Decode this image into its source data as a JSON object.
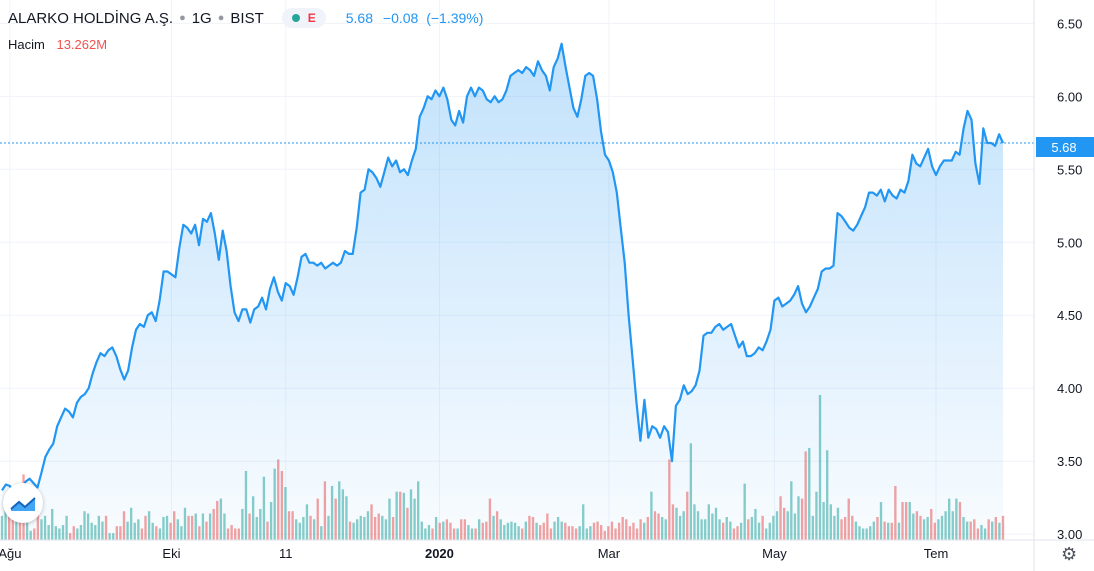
{
  "header": {
    "symbol": "ALARKO HOLDİNG A.Ş.",
    "interval": "1G",
    "exchange": "BIST",
    "flag": "E",
    "last": "5.68",
    "change": "−0.08",
    "change_pct": "(−1.39%)"
  },
  "volume": {
    "label": "Hacim",
    "value": "13.262M"
  },
  "price_label": "5.68",
  "icons": {
    "logo": "tradingview-logo-icon",
    "settings": "gear-icon",
    "status": "market-status-dot-icon"
  },
  "colors": {
    "line": "#2196f3",
    "vol_up": "#26a69a",
    "vol_down": "#ef5350"
  },
  "chart_data": {
    "type": "area",
    "title": "ALARKO HOLDİNG A.Ş. · 1G · BIST",
    "x_ticks": [
      "Ağu",
      "Eki",
      "11",
      "2020",
      "Mar",
      "May",
      "Tem"
    ],
    "y_ticks": [
      3.0,
      3.5,
      4.0,
      4.5,
      5.0,
      5.5,
      6.0,
      6.5
    ],
    "ylim": [
      2.96,
      6.66
    ],
    "last_price": 5.68,
    "grid": true,
    "series": [
      {
        "x_start": "2019-08-01",
        "x_end": "2020-07-24",
        "values": [
          3.3,
          3.34,
          3.33,
          3.28,
          3.31,
          3.3,
          3.36,
          3.38,
          3.35,
          3.32,
          3.42,
          3.53,
          3.58,
          3.62,
          3.74,
          3.8,
          3.86,
          3.84,
          3.8,
          3.9,
          3.94,
          3.96,
          4.0,
          4.1,
          4.18,
          4.24,
          4.22,
          4.26,
          4.28,
          4.22,
          4.13,
          4.06,
          4.12,
          4.28,
          4.4,
          4.44,
          4.42,
          4.5,
          4.52,
          4.46,
          4.6,
          4.8,
          4.8,
          4.78,
          4.76,
          4.96,
          5.12,
          5.1,
          5.06,
          5.12,
          4.98,
          5.16,
          5.14,
          5.2,
          5.06,
          4.88,
          5.08,
          4.94,
          4.7,
          4.52,
          4.46,
          4.54,
          4.54,
          4.45,
          4.54,
          4.56,
          4.62,
          4.54,
          4.68,
          4.76,
          4.66,
          4.6,
          4.72,
          4.7,
          4.64,
          4.76,
          4.9,
          4.92,
          4.86,
          4.86,
          4.84,
          4.86,
          4.82,
          4.84,
          4.86,
          4.84,
          4.86,
          4.94,
          4.92,
          4.92,
          5.1,
          5.34,
          5.36,
          5.5,
          5.48,
          5.44,
          5.38,
          5.48,
          5.58,
          5.52,
          5.56,
          5.48,
          5.5,
          5.46,
          5.56,
          5.64,
          5.86,
          5.92,
          6.0,
          5.98,
          6.04,
          6.0,
          6.06,
          5.98,
          5.84,
          5.8,
          5.9,
          5.82,
          6.0,
          6.06,
          6.0,
          6.06,
          6.04,
          5.98,
          5.96,
          6.0,
          5.96,
          5.98,
          6.04,
          6.14,
          6.16,
          6.18,
          6.16,
          6.2,
          6.18,
          6.14,
          6.24,
          6.18,
          6.14,
          6.04,
          6.2,
          6.26,
          6.36,
          6.2,
          6.06,
          5.92,
          5.86,
          5.98,
          6.14,
          6.16,
          6.14,
          5.98,
          5.76,
          5.6,
          5.56,
          5.48,
          5.34,
          5.1,
          4.86,
          4.5,
          4.2,
          3.9,
          3.64,
          3.92,
          3.66,
          3.74,
          3.72,
          3.66,
          3.74,
          3.7,
          3.5,
          3.88,
          3.92,
          4.02,
          3.96,
          3.98,
          4.02,
          4.12,
          4.36,
          4.38,
          4.38,
          4.42,
          4.44,
          4.4,
          4.42,
          4.44,
          4.36,
          4.28,
          4.32,
          4.22,
          4.22,
          4.24,
          4.28,
          4.26,
          4.32,
          4.4,
          4.6,
          4.62,
          4.56,
          4.58,
          4.6,
          4.64,
          4.7,
          4.58,
          4.52,
          4.56,
          4.62,
          4.68,
          4.8,
          4.82,
          4.82,
          4.84,
          5.2,
          5.18,
          5.14,
          5.1,
          5.08,
          5.12,
          5.18,
          5.24,
          5.34,
          5.34,
          5.32,
          5.36,
          5.28,
          5.36,
          5.32,
          5.3,
          5.36,
          5.34,
          5.42,
          5.6,
          5.54,
          5.52,
          5.58,
          5.64,
          5.52,
          5.46,
          5.52,
          5.56,
          5.56,
          5.56,
          5.62,
          5.6,
          5.78,
          5.9,
          5.84,
          5.54,
          5.4,
          5.78,
          5.68,
          5.68,
          5.66,
          5.74,
          5.68
        ]
      },
      {
        "name": "Hacim",
        "values": [
          0.21,
          0.27,
          0.29,
          0.2,
          0.31,
          0.44,
          0.57,
          0.15,
          0.08,
          0.1,
          0.23,
          0.18,
          0.21,
          0.13,
          0.27,
          0.12,
          0.1,
          0.13,
          0.21,
          0.06,
          0.12,
          0.1,
          0.13,
          0.25,
          0.23,
          0.15,
          0.13,
          0.21,
          0.16,
          0.21,
          0.06,
          0.06,
          0.12,
          0.12,
          0.25,
          0.16,
          0.28,
          0.15,
          0.18,
          0.1,
          0.21,
          0.25,
          0.15,
          0.12,
          0.1,
          0.2,
          0.21,
          0.15,
          0.25,
          0.18,
          0.12,
          0.28,
          0.21,
          0.21,
          0.23,
          0.12,
          0.23,
          0.16,
          0.23,
          0.27,
          0.34,
          0.36,
          0.23,
          0.1,
          0.13,
          0.1,
          0.1,
          0.27,
          0.6,
          0.23,
          0.38,
          0.2,
          0.27,
          0.55,
          0.16,
          0.33,
          0.62,
          0.7,
          0.6,
          0.46,
          0.25,
          0.25,
          0.18,
          0.15,
          0.2,
          0.31,
          0.21,
          0.18,
          0.36,
          0.12,
          0.51,
          0.21,
          0.47,
          0.36,
          0.51,
          0.44,
          0.38,
          0.16,
          0.15,
          0.18,
          0.21,
          0.2,
          0.25,
          0.31,
          0.2,
          0.23,
          0.21,
          0.18,
          0.36,
          0.2,
          0.42,
          0.42,
          0.41,
          0.28,
          0.44,
          0.36,
          0.51,
          0.16,
          0.1,
          0.13,
          0.1,
          0.2,
          0.15,
          0.16,
          0.18,
          0.15,
          0.1,
          0.1,
          0.18,
          0.18,
          0.13,
          0.1,
          0.1,
          0.18,
          0.15,
          0.16,
          0.36,
          0.21,
          0.25,
          0.18,
          0.13,
          0.15,
          0.16,
          0.15,
          0.12,
          0.1,
          0.16,
          0.21,
          0.2,
          0.15,
          0.13,
          0.15,
          0.23,
          0.1,
          0.16,
          0.2,
          0.16,
          0.15,
          0.12,
          0.12,
          0.1,
          0.12,
          0.31,
          0.1,
          0.12,
          0.15,
          0.16,
          0.13,
          0.08,
          0.12,
          0.16,
          0.1,
          0.15,
          0.2,
          0.18,
          0.12,
          0.15,
          0.1,
          0.18,
          0.15,
          0.2,
          0.42,
          0.25,
          0.23,
          0.2,
          0.18,
          0.7,
          0.31,
          0.28,
          0.21,
          0.25,
          0.42,
          0.84,
          0.31,
          0.25,
          0.18,
          0.18,
          0.31,
          0.23,
          0.28,
          0.18,
          0.15,
          0.2,
          0.16,
          0.1,
          0.12,
          0.15,
          0.49,
          0.18,
          0.2,
          0.27,
          0.15,
          0.21,
          0.1,
          0.15,
          0.21,
          0.25,
          0.38,
          0.28,
          0.25,
          0.51,
          0.23,
          0.38,
          0.36,
          0.77,
          0.8,
          0.21,
          0.42,
          1.26,
          0.33,
          0.78,
          0.31,
          0.21,
          0.28,
          0.18,
          0.2,
          0.36,
          0.21,
          0.16,
          0.12,
          0.1,
          0.1,
          0.12,
          0.16,
          0.2,
          0.33,
          0.16,
          0.15,
          0.15,
          0.47,
          0.15,
          0.33,
          0.33,
          0.33,
          0.23,
          0.25,
          0.21,
          0.18,
          0.2,
          0.27,
          0.15,
          0.18,
          0.21,
          0.25,
          0.36,
          0.25,
          0.36,
          0.33,
          0.2,
          0.16,
          0.16,
          0.18,
          0.1,
          0.13,
          0.1,
          0.18,
          0.16,
          0.2,
          0.15,
          0.21
        ]
      }
    ]
  }
}
